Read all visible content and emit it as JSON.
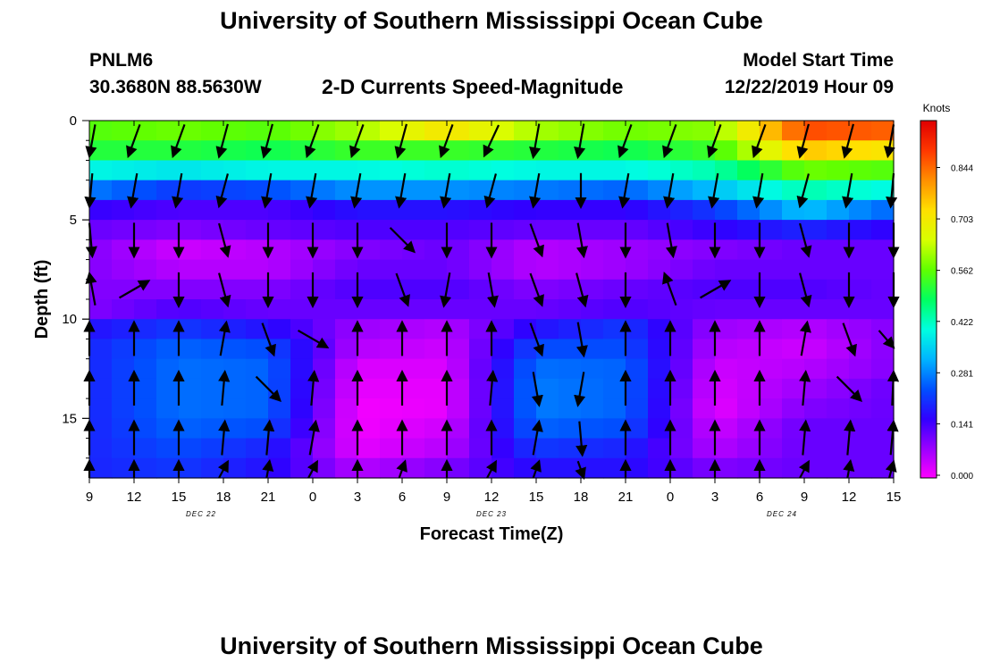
{
  "header": {
    "title": "University of Southern Mississippi Ocean Cube",
    "station_id": "PNLM6",
    "coordinates": "30.3680N 88.5630W",
    "subtitle": "2-D Currents Speed-Magnitude",
    "model_start_label": "Model Start Time",
    "model_start_value": "12/22/2019 Hour 09"
  },
  "footer": {
    "title": "University of Southern Mississippi Ocean Cube"
  },
  "chart_data": {
    "type": "heatmap",
    "title": "2-D Currents Speed-Magnitude",
    "xlabel": "Forecast Time(Z)",
    "ylabel": "Depth (ft)",
    "x_tick_labels": [
      "9",
      "12",
      "15",
      "18",
      "21",
      "0",
      "3",
      "6",
      "9",
      "12",
      "15",
      "18",
      "21",
      "0",
      "3",
      "6",
      "9",
      "12",
      "15"
    ],
    "x_range_hours": [
      0,
      54
    ],
    "date_labels": [
      {
        "label": "DEC 22",
        "hour": 7.5
      },
      {
        "label": "DEC 23",
        "hour": 27
      },
      {
        "label": "DEC 24",
        "hour": 46.5
      }
    ],
    "y_ticks": [
      0,
      5,
      10,
      15
    ],
    "ylim": [
      0,
      18
    ],
    "y_inverted": true,
    "colorbar": {
      "label": "Knots",
      "ticks": [
        0.0,
        0.141,
        0.281,
        0.422,
        0.562,
        0.703,
        0.844
      ],
      "tick_labels": [
        "0.000",
        "0.141",
        "0.281",
        "0.422",
        "0.562",
        "0.703",
        "0.844"
      ],
      "range": [
        0,
        0.98
      ],
      "colors": [
        "#ff00ff",
        "#9a00ff",
        "#3000ff",
        "#0050ff",
        "#00b4ff",
        "#00ffe0",
        "#00ff60",
        "#60ff00",
        "#d8ff00",
        "#ffe000",
        "#ff9000",
        "#ff3800",
        "#e00000"
      ]
    },
    "depth_bands_ft": [
      0.5,
      1.5,
      2.5,
      3.5,
      4.5,
      5.5,
      6.5,
      7.5,
      8.5,
      9.5,
      10.5,
      11.5,
      12.5,
      13.5,
      14.5,
      15.5,
      16.5,
      17.5
    ],
    "speed_profile_knots": [
      {
        "hour": 0,
        "speeds": [
          0.56,
          0.52,
          0.4,
          0.28,
          0.16,
          0.12,
          0.1,
          0.1,
          0.1,
          0.1,
          0.18,
          0.2,
          0.2,
          0.2,
          0.2,
          0.2,
          0.2,
          0.2
        ]
      },
      {
        "hour": 6,
        "speeds": [
          0.58,
          0.52,
          0.38,
          0.22,
          0.14,
          0.1,
          0.04,
          0.06,
          0.1,
          0.14,
          0.22,
          0.26,
          0.27,
          0.27,
          0.27,
          0.26,
          0.24,
          0.22
        ]
      },
      {
        "hour": 12,
        "speeds": [
          0.56,
          0.5,
          0.4,
          0.24,
          0.14,
          0.12,
          0.06,
          0.06,
          0.1,
          0.12,
          0.18,
          0.24,
          0.26,
          0.26,
          0.26,
          0.24,
          0.2,
          0.18
        ]
      },
      {
        "hour": 18,
        "speeds": [
          0.62,
          0.54,
          0.4,
          0.3,
          0.18,
          0.14,
          0.1,
          0.12,
          0.14,
          0.12,
          0.08,
          0.06,
          0.03,
          0.02,
          0.01,
          0.01,
          0.02,
          0.06
        ]
      },
      {
        "hour": 24,
        "speeds": [
          0.72,
          0.54,
          0.42,
          0.3,
          0.18,
          0.14,
          0.12,
          0.12,
          0.14,
          0.12,
          0.06,
          0.04,
          0.03,
          0.02,
          0.02,
          0.04,
          0.06,
          0.1
        ]
      },
      {
        "hour": 30,
        "speeds": [
          0.62,
          0.52,
          0.4,
          0.28,
          0.16,
          0.12,
          0.06,
          0.06,
          0.1,
          0.12,
          0.18,
          0.24,
          0.27,
          0.28,
          0.28,
          0.26,
          0.22,
          0.18
        ]
      },
      {
        "hour": 36,
        "speeds": [
          0.58,
          0.5,
          0.4,
          0.26,
          0.16,
          0.12,
          0.08,
          0.08,
          0.12,
          0.14,
          0.22,
          0.24,
          0.26,
          0.26,
          0.26,
          0.24,
          0.2,
          0.18
        ]
      },
      {
        "hour": 42,
        "speeds": [
          0.6,
          0.54,
          0.44,
          0.34,
          0.22,
          0.16,
          0.1,
          0.12,
          0.14,
          0.12,
          0.08,
          0.06,
          0.04,
          0.03,
          0.02,
          0.04,
          0.06,
          0.1
        ]
      },
      {
        "hour": 48,
        "speeds": [
          0.88,
          0.76,
          0.58,
          0.44,
          0.34,
          0.2,
          0.12,
          0.12,
          0.14,
          0.12,
          0.06,
          0.04,
          0.06,
          0.08,
          0.1,
          0.12,
          0.12,
          0.12
        ]
      },
      {
        "hour": 54,
        "speeds": [
          0.86,
          0.72,
          0.56,
          0.4,
          0.26,
          0.16,
          0.12,
          0.12,
          0.12,
          0.12,
          0.1,
          0.1,
          0.1,
          0.12,
          0.12,
          0.12,
          0.12,
          0.12
        ]
      }
    ],
    "vector_rows_depth_ft": [
      1,
      3.5,
      6,
      8.5,
      11,
      13.5,
      16,
      18
    ],
    "vector_columns_hours": [
      0,
      3,
      6,
      9,
      12,
      15,
      18,
      21,
      24,
      27,
      30,
      33,
      36,
      39,
      42,
      45,
      48,
      51,
      54
    ],
    "direction_profile_deg": [
      {
        "hour": 0,
        "dirs": [
          200,
          190,
          170,
          340,
          0,
          0,
          0,
          0
        ]
      },
      {
        "hour": 3,
        "dirs": [
          200,
          190,
          180,
          60,
          0,
          0,
          0,
          0
        ]
      },
      {
        "hour": 6,
        "dirs": [
          200,
          190,
          180,
          180,
          0,
          0,
          0,
          0
        ]
      },
      {
        "hour": 9,
        "dirs": [
          195,
          195,
          165,
          165,
          10,
          5,
          5,
          15
        ]
      },
      {
        "hour": 12,
        "dirs": [
          195,
          190,
          180,
          180,
          160,
          135,
          5,
          5
        ]
      },
      {
        "hour": 15,
        "dirs": [
          200,
          190,
          180,
          180,
          120,
          5,
          10,
          15
        ]
      },
      {
        "hour": 18,
        "dirs": [
          200,
          190,
          180,
          180,
          0,
          0,
          0,
          0
        ]
      },
      {
        "hour": 21,
        "dirs": [
          195,
          190,
          135,
          160,
          0,
          0,
          0,
          10
        ]
      },
      {
        "hour": 24,
        "dirs": [
          200,
          190,
          180,
          190,
          0,
          0,
          0,
          0
        ]
      },
      {
        "hour": 27,
        "dirs": [
          205,
          195,
          180,
          170,
          0,
          5,
          0,
          15
        ]
      },
      {
        "hour": 30,
        "dirs": [
          190,
          190,
          160,
          160,
          160,
          170,
          10,
          10
        ]
      },
      {
        "hour": 33,
        "dirs": [
          190,
          180,
          170,
          165,
          170,
          190,
          175,
          170
        ]
      },
      {
        "hour": 36,
        "dirs": [
          200,
          190,
          180,
          180,
          0,
          0,
          0,
          0
        ]
      }
    ]
  }
}
